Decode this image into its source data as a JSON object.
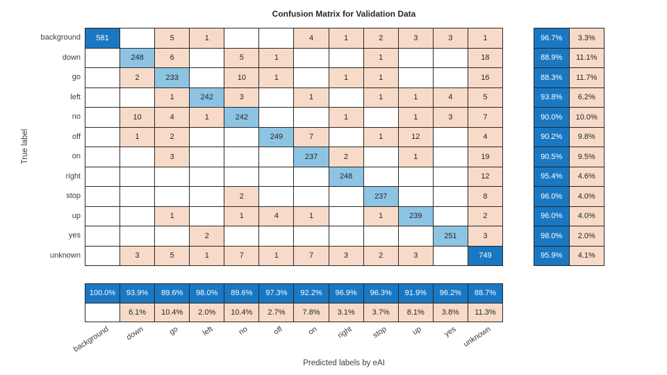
{
  "chart_data": {
    "type": "heatmap",
    "title": "Confusion Matrix for Validation Data",
    "xlabel": "Predicted labels by eAI",
    "ylabel": "True label",
    "categories": [
      "background",
      "down",
      "go",
      "left",
      "no",
      "off",
      "on",
      "right",
      "stop",
      "up",
      "yes",
      "unknown"
    ],
    "matrix": [
      [
        581,
        null,
        5,
        1,
        null,
        null,
        4,
        1,
        2,
        3,
        3,
        1
      ],
      [
        null,
        248,
        6,
        null,
        5,
        1,
        null,
        null,
        1,
        null,
        null,
        18
      ],
      [
        null,
        2,
        233,
        null,
        10,
        1,
        null,
        1,
        1,
        null,
        null,
        16
      ],
      [
        null,
        null,
        1,
        242,
        3,
        null,
        1,
        null,
        1,
        1,
        4,
        5
      ],
      [
        null,
        10,
        4,
        1,
        242,
        null,
        null,
        1,
        null,
        1,
        3,
        7
      ],
      [
        null,
        1,
        2,
        null,
        null,
        249,
        7,
        null,
        1,
        12,
        null,
        4
      ],
      [
        null,
        null,
        3,
        null,
        null,
        null,
        237,
        2,
        null,
        1,
        null,
        19
      ],
      [
        null,
        null,
        null,
        null,
        null,
        null,
        null,
        248,
        null,
        null,
        null,
        12
      ],
      [
        null,
        null,
        null,
        null,
        2,
        null,
        null,
        null,
        237,
        null,
        null,
        8
      ],
      [
        null,
        null,
        1,
        null,
        1,
        4,
        1,
        null,
        1,
        239,
        null,
        2
      ],
      [
        null,
        null,
        null,
        2,
        null,
        null,
        null,
        null,
        null,
        null,
        251,
        3
      ],
      [
        null,
        3,
        5,
        1,
        7,
        1,
        7,
        3,
        2,
        3,
        null,
        749
      ]
    ],
    "row_summary": [
      [
        "96.7%",
        "3.3%"
      ],
      [
        "88.9%",
        "11.1%"
      ],
      [
        "88.3%",
        "11.7%"
      ],
      [
        "93.8%",
        "6.2%"
      ],
      [
        "90.0%",
        "10.0%"
      ],
      [
        "90.2%",
        "9.8%"
      ],
      [
        "90.5%",
        "9.5%"
      ],
      [
        "95.4%",
        "4.6%"
      ],
      [
        "96.0%",
        "4.0%"
      ],
      [
        "96.0%",
        "4.0%"
      ],
      [
        "98.0%",
        "2.0%"
      ],
      [
        "95.9%",
        "4.1%"
      ]
    ],
    "col_summary": [
      [
        "100.0%",
        ""
      ],
      [
        "93.9%",
        "6.1%"
      ],
      [
        "89.6%",
        "10.4%"
      ],
      [
        "98.0%",
        "2.0%"
      ],
      [
        "89.6%",
        "10.4%"
      ],
      [
        "97.3%",
        "2.7%"
      ],
      [
        "92.2%",
        "7.8%"
      ],
      [
        "96.9%",
        "3.1%"
      ],
      [
        "96.3%",
        "3.7%"
      ],
      [
        "91.9%",
        "8.1%"
      ],
      [
        "96.2%",
        "3.8%"
      ],
      [
        "88.7%",
        "11.3%"
      ]
    ],
    "colors": {
      "diagonal_dark": "#1a78c3",
      "diagonal_light": "#8ec4e3",
      "off_diagonal": "#f7dbc8",
      "grid_line": "#262626",
      "text": "#262626",
      "text_on_dark": "#ffffff"
    },
    "dark_text_threshold": 500,
    "grid": true,
    "legend_position": "none"
  }
}
